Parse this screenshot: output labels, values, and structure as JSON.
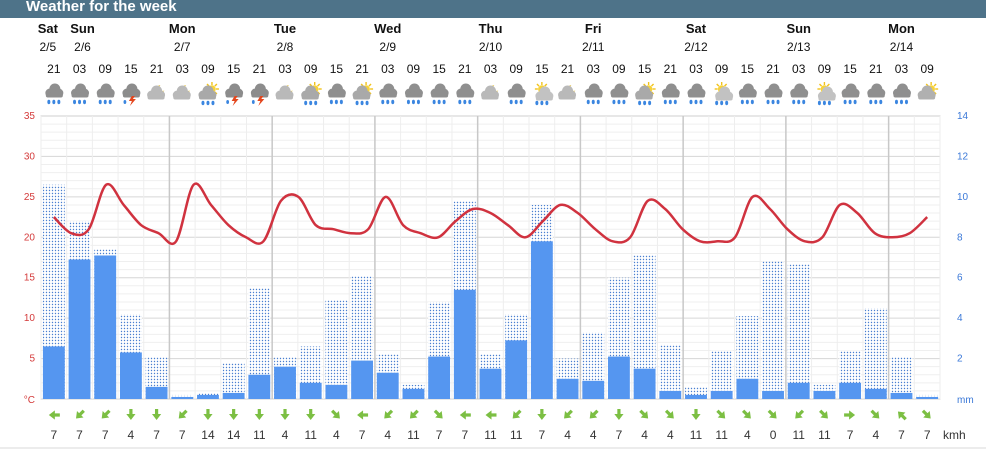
{
  "header": {
    "title": "Weather for the week"
  },
  "chart_data": {
    "type": "bar",
    "days": [
      {
        "name": "Sat",
        "date": "2/5",
        "col": 0
      },
      {
        "name": "Sun",
        "date": "2/6",
        "col": 1
      },
      {
        "name": "Mon",
        "date": "2/7",
        "col": 5
      },
      {
        "name": "Tue",
        "date": "2/8",
        "col": 9
      },
      {
        "name": "Wed",
        "date": "2/9",
        "col": 13
      },
      {
        "name": "Thu",
        "date": "2/10",
        "col": 17
      },
      {
        "name": "Fri",
        "date": "2/11",
        "col": 21
      },
      {
        "name": "Sat",
        "date": "2/12",
        "col": 25
      },
      {
        "name": "Sun",
        "date": "2/13",
        "col": 29
      },
      {
        "name": "Mon",
        "date": "2/14",
        "col": 33
      }
    ],
    "hours": [
      "21",
      "03",
      "09",
      "15",
      "21",
      "03",
      "09",
      "15",
      "21",
      "03",
      "09",
      "15",
      "21",
      "03",
      "09",
      "15",
      "21",
      "03",
      "09",
      "15",
      "21",
      "03",
      "09",
      "15",
      "21",
      "03",
      "09",
      "15",
      "21",
      "03",
      "09",
      "15",
      "21",
      "03",
      "09"
    ],
    "icons": [
      "cloud-rain",
      "cloud-rain",
      "cloud-rain",
      "thunder",
      "partly-cloudy-night",
      "partly-cloudy-night",
      "partly-cloudy-rain",
      "thunder",
      "thunder",
      "partly-cloudy-night",
      "partly-cloudy-rain",
      "cloud-rain",
      "partly-cloudy-rain",
      "cloud-rain",
      "cloud-rain",
      "cloud-rain",
      "cloud-rain",
      "partly-cloudy-night",
      "cloud-rain",
      "sun-rain",
      "partly-cloudy-night",
      "cloud-rain",
      "cloud-rain",
      "partly-cloudy-rain",
      "cloud-rain",
      "cloud-rain",
      "sun-rain",
      "cloud-rain",
      "cloud-rain",
      "cloud-rain",
      "sun-rain",
      "cloud-rain",
      "cloud-rain",
      "cloud-rain",
      "partly-cloudy"
    ],
    "temperature_c": [
      22.5,
      20.5,
      21,
      26.5,
      24,
      21.5,
      20.5,
      19.5,
      26.5,
      24,
      21.5,
      20,
      19.5,
      24.5,
      25,
      21.5,
      21,
      20.5,
      21,
      25,
      21.5,
      20.5,
      20,
      22,
      23.5,
      23,
      21.5,
      20,
      22,
      24,
      23,
      21,
      19.5,
      20,
      24.5,
      23.5,
      21,
      19.5,
      19.5,
      20,
      25,
      23.5,
      21,
      19.5,
      20,
      24,
      23,
      20.5,
      20,
      20.5,
      22.5
    ],
    "temperature_x": [
      0,
      0.5,
      1,
      1.8,
      2.3,
      3,
      3.5,
      4,
      4.8,
      5.3,
      6,
      6.5,
      7,
      7.7,
      8.3,
      9,
      9.5,
      10,
      10.6,
      11.2,
      11.8,
      12.4,
      13,
      13.6,
      14.2,
      14.8,
      15.4,
      16,
      16.6,
      17.2,
      17.8,
      18.4,
      19,
      19.6,
      20.2,
      20.8,
      21.4,
      22,
      22.6,
      23.2,
      23.8,
      24.4,
      25,
      25.6,
      26.2,
      26.8,
      27.4,
      28,
      28.6,
      29.2,
      34
    ],
    "precip_max_mm": [
      10.6,
      8.8,
      7.4,
      4.2,
      2.1,
      0.2,
      0.3,
      1.8,
      5.5,
      2.1,
      2.6,
      4.9,
      6.1,
      2.2,
      0.7,
      4.8,
      9.8,
      2.2,
      4.2,
      9.6,
      2.0,
      3.3,
      6.0,
      7.1,
      2.7,
      0.6,
      2.4,
      4.1,
      6.8,
      6.7,
      0.7,
      2.4,
      4.5,
      2.1,
      0.2
    ],
    "precip_mm": [
      2.6,
      6.9,
      7.1,
      2.3,
      0.6,
      0.1,
      0.2,
      0.3,
      1.2,
      1.6,
      0.8,
      0.7,
      1.9,
      1.3,
      0.5,
      2.1,
      5.4,
      1.5,
      2.9,
      7.8,
      1.0,
      0.9,
      2.1,
      1.5,
      0.4,
      0.2,
      0.4,
      1.0,
      0.4,
      0.8,
      0.4,
      0.8,
      0.5,
      0.3,
      0.1
    ],
    "wind_kmh": [
      7,
      7,
      7,
      4,
      7,
      7,
      14,
      14,
      11,
      4,
      11,
      4,
      7,
      4,
      11,
      7,
      7,
      11,
      11,
      7,
      4,
      4,
      7,
      4,
      4,
      11,
      11,
      4,
      0,
      11,
      11,
      7,
      4,
      7,
      7
    ],
    "wind_dir": [
      "W",
      "SW",
      "SW",
      "S",
      "S",
      "SW",
      "S",
      "S",
      "S",
      "S",
      "S",
      "SE",
      "W",
      "SW",
      "SW",
      "SE",
      "W",
      "W",
      "SW",
      "S",
      "SW",
      "SW",
      "S",
      "SE",
      "SE",
      "S",
      "SE",
      "SE",
      "SE",
      "SW",
      "SE",
      "E",
      "SE",
      "NW",
      "SE"
    ],
    "wind_unit": "kmh",
    "y_temp": {
      "ticks": [
        35,
        30,
        25,
        20,
        15,
        10,
        5
      ],
      "unit_label": "°C",
      "range": [
        0,
        35
      ]
    },
    "y_precip": {
      "ticks": [
        14,
        12,
        10,
        8,
        6,
        4,
        2
      ],
      "unit_label": "mm",
      "range": [
        0,
        14
      ]
    },
    "colors": {
      "temp": "#d0323f",
      "precip": "#5596f0",
      "precip_max": "#4a7fd0",
      "wind": "#7cbf43",
      "grid": "#dcdcdc",
      "day_line": "#c8c8c8"
    },
    "grid": true
  }
}
